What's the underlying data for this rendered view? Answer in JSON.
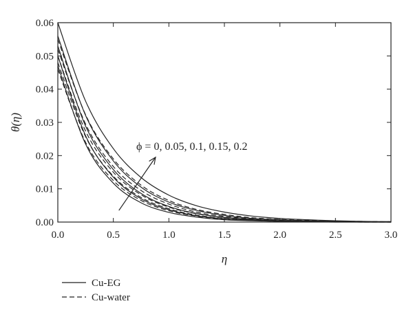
{
  "chart_data": {
    "type": "line",
    "title": "",
    "xlabel": "η",
    "ylabel": "θ(η)",
    "xlim": [
      0.0,
      3.0
    ],
    "ylim": [
      0.0,
      0.06
    ],
    "x_ticks": [
      "0.0",
      "0.5",
      "1.0",
      "1.5",
      "2.0",
      "2.5",
      "3.0"
    ],
    "y_ticks": [
      "0.00",
      "0.01",
      "0.02",
      "0.03",
      "0.04",
      "0.05",
      "0.06"
    ],
    "x_tick_values": [
      0.0,
      0.5,
      1.0,
      1.5,
      2.0,
      2.5,
      3.0
    ],
    "y_tick_values": [
      0.0,
      0.01,
      0.02,
      0.03,
      0.04,
      0.05,
      0.06
    ],
    "grid": false,
    "annotation": "ϕ = 0, 0.05, 0.1, 0.15, 0.2",
    "arrow": {
      "from": [
        0.55,
        0.0035
      ],
      "to": [
        0.88,
        0.0195
      ]
    },
    "legend": {
      "placement": "bottom-left",
      "entries": [
        {
          "label": "Cu-EG",
          "style": "solid"
        },
        {
          "label": "Cu-water",
          "style": "dashed"
        }
      ]
    },
    "x": [
      0.0,
      0.25,
      0.5,
      0.75,
      1.0,
      1.25,
      1.5,
      1.75,
      2.0,
      2.25,
      2.5,
      2.75,
      3.0
    ],
    "series": [
      {
        "group": "Cu-EG",
        "style": "solid",
        "values": [
          0.06,
          0.0364,
          0.0221,
          0.0134,
          0.0081,
          0.0049,
          0.003,
          0.0018,
          0.0011,
          0.0007,
          0.0004,
          0.0002,
          0.0001
        ]
      },
      {
        "group": "Cu-EG",
        "style": "solid",
        "values": [
          0.056,
          0.0321,
          0.0184,
          0.0105,
          0.006,
          0.0035,
          0.002,
          0.0011,
          0.0007,
          0.0004,
          0.0002,
          0.0001,
          0.0001
        ]
      },
      {
        "group": "Cu-EG",
        "style": "solid",
        "values": [
          0.053,
          0.0289,
          0.0158,
          0.0086,
          0.0047,
          0.0026,
          0.0014,
          0.0008,
          0.0004,
          0.0002,
          0.0001,
          0.0001,
          0.0
        ]
      },
      {
        "group": "Cu-EG",
        "style": "solid",
        "values": [
          0.05,
          0.026,
          0.0135,
          0.007,
          0.0037,
          0.0019,
          0.001,
          0.0005,
          0.0003,
          0.0001,
          0.0001,
          0.0,
          0.0
        ]
      },
      {
        "group": "Cu-EG",
        "style": "solid",
        "values": [
          0.047,
          0.0235,
          0.0117,
          0.0058,
          0.0029,
          0.0015,
          0.0007,
          0.0004,
          0.0002,
          0.0001,
          0.0,
          0.0,
          0.0
        ]
      },
      {
        "group": "Cu-water",
        "style": "dashed",
        "values": [
          0.055,
          0.0323,
          0.019,
          0.0111,
          0.0065,
          0.0038,
          0.0023,
          0.0013,
          0.0008,
          0.0005,
          0.0003,
          0.0002,
          0.0001
        ]
      },
      {
        "group": "Cu-water",
        "style": "dashed",
        "values": [
          0.052,
          0.0295,
          0.0167,
          0.0095,
          0.0054,
          0.003,
          0.0017,
          0.001,
          0.0006,
          0.0003,
          0.0002,
          0.0001,
          0.0001
        ]
      },
      {
        "group": "Cu-water",
        "style": "dashed",
        "values": [
          0.05,
          0.0274,
          0.015,
          0.0082,
          0.0045,
          0.0025,
          0.0014,
          0.0007,
          0.0004,
          0.0002,
          0.0001,
          0.0001,
          0.0
        ]
      },
      {
        "group": "Cu-water",
        "style": "dashed",
        "values": [
          0.048,
          0.0257,
          0.0138,
          0.0074,
          0.004,
          0.0021,
          0.0011,
          0.0006,
          0.0003,
          0.0002,
          0.0001,
          0.0001,
          0.0
        ]
      },
      {
        "group": "Cu-water",
        "style": "dashed",
        "values": [
          0.046,
          0.024,
          0.0125,
          0.0065,
          0.0034,
          0.0018,
          0.0009,
          0.0005,
          0.0002,
          0.0001,
          0.0001,
          0.0,
          0.0
        ]
      }
    ]
  }
}
